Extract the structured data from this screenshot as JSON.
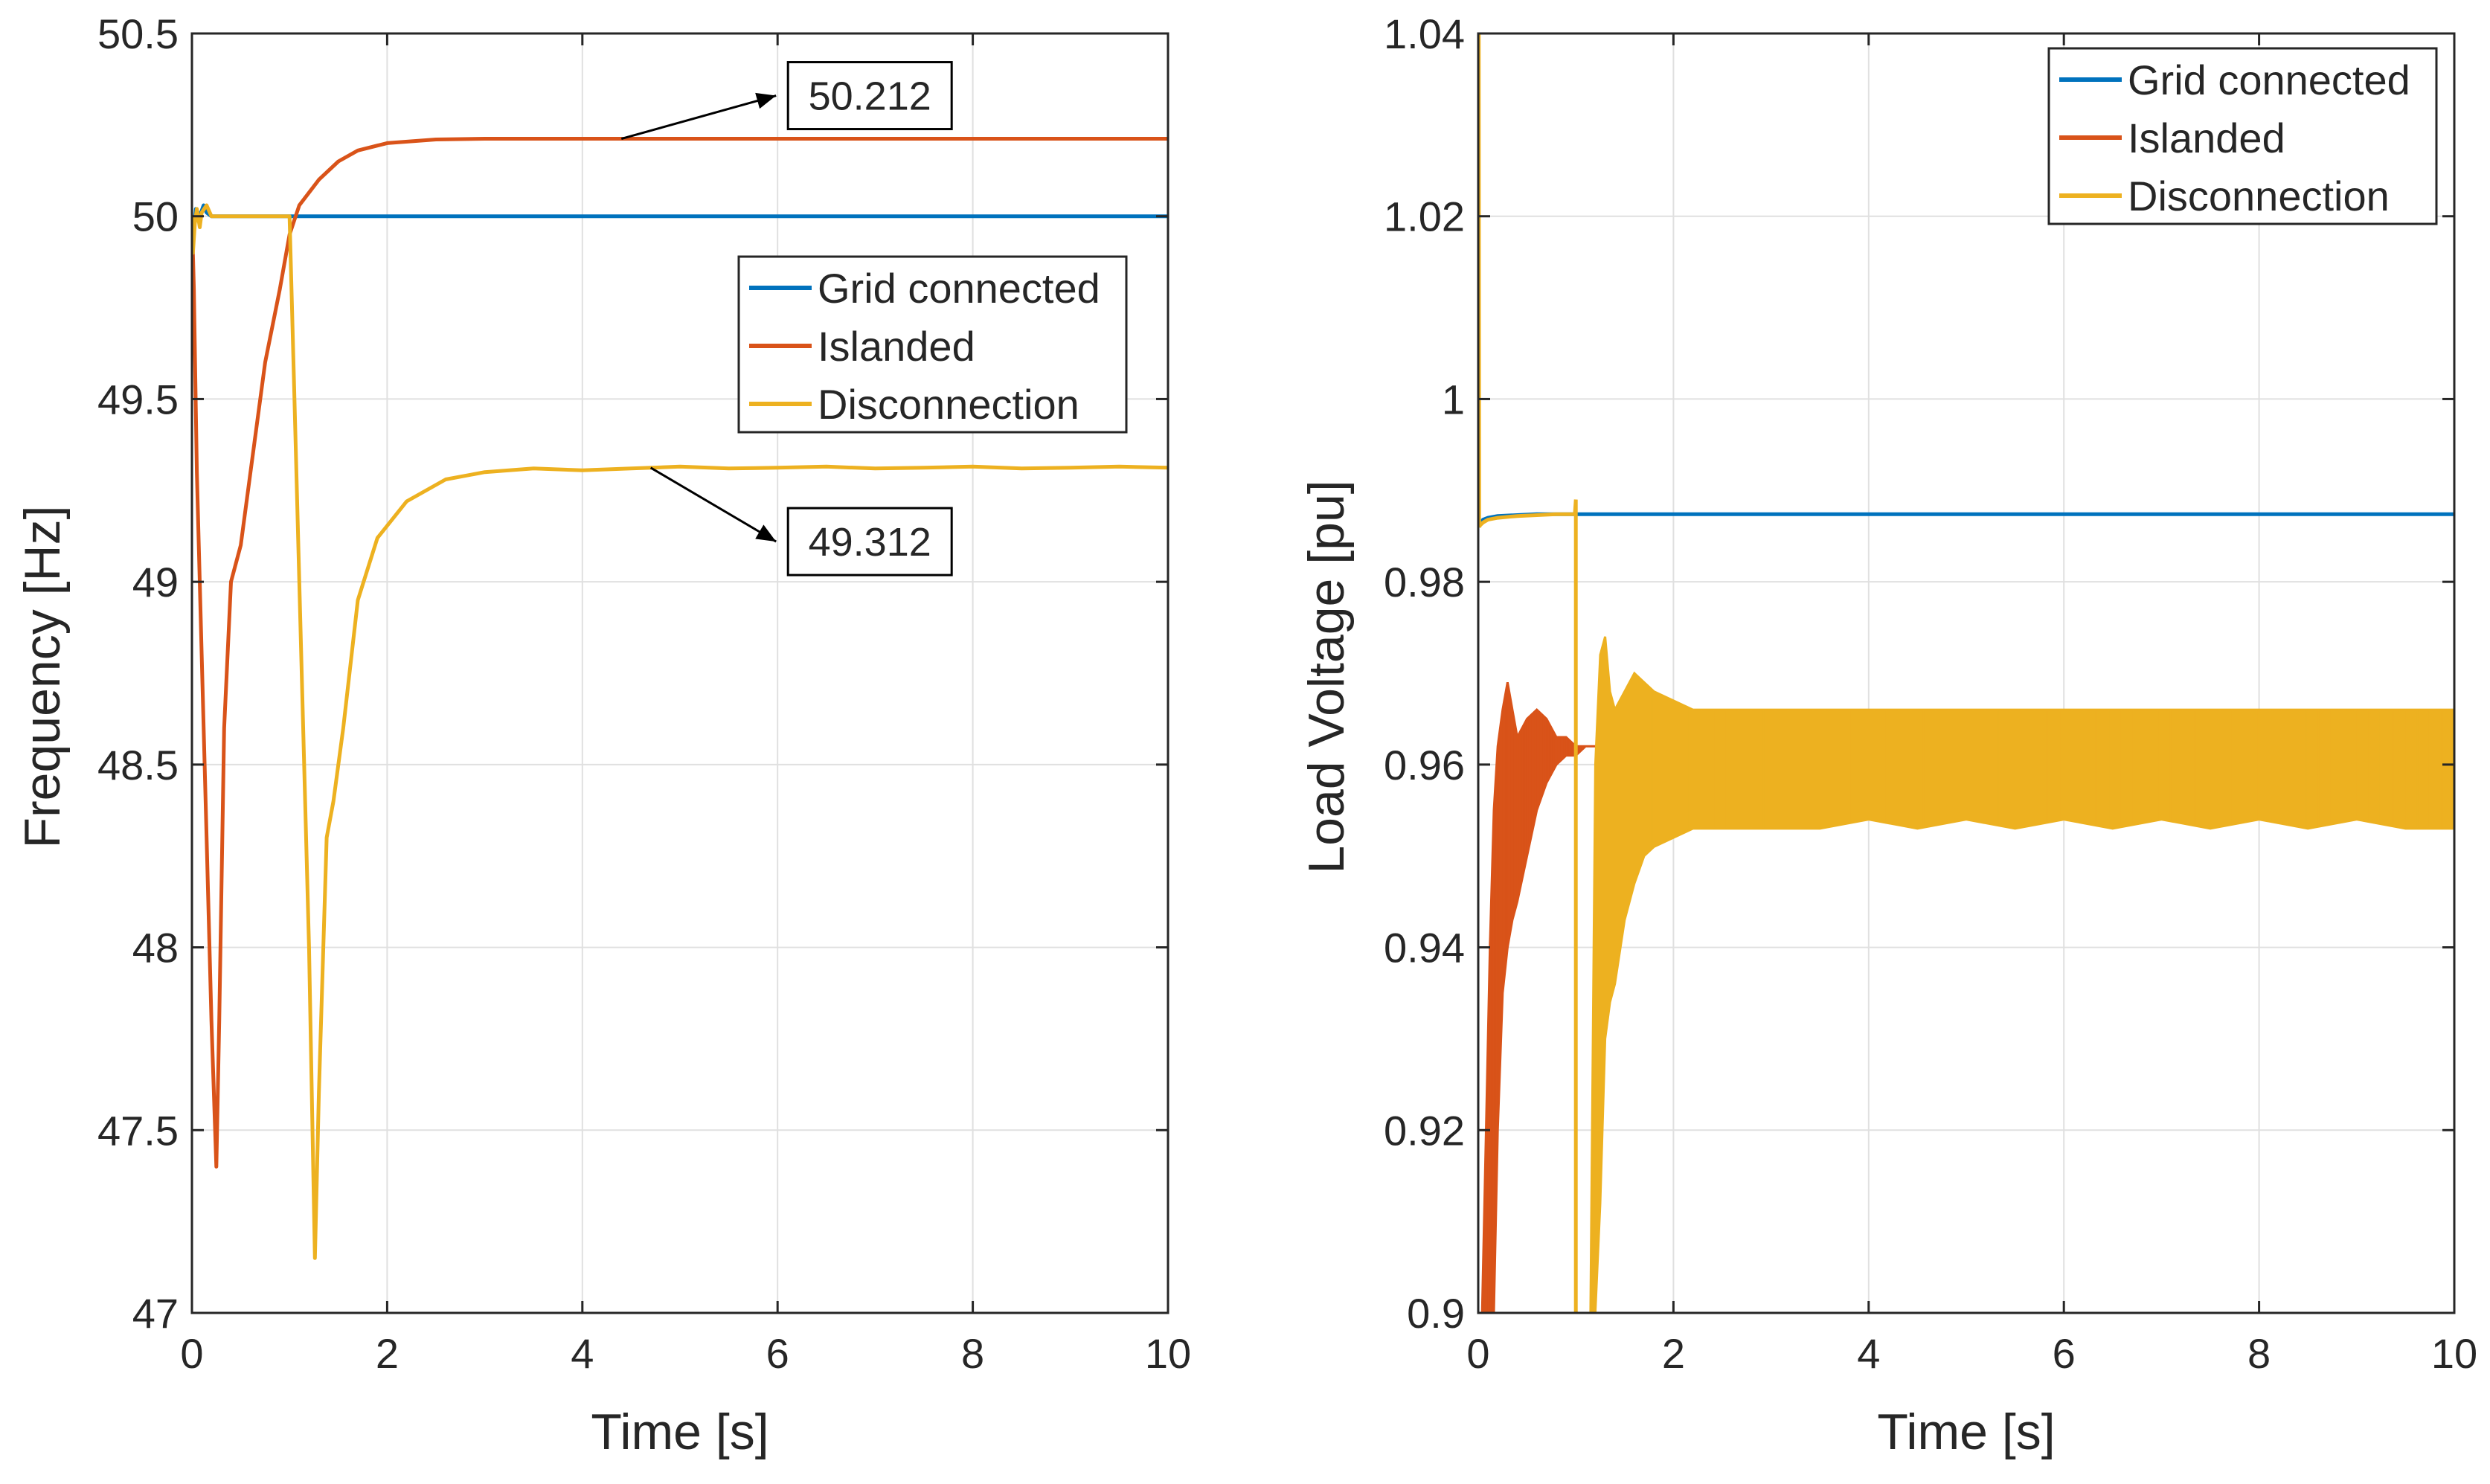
{
  "colors": {
    "grid_connected": "#0072BD",
    "islanded": "#D95319",
    "disconnection": "#EDB120",
    "axis": "#262626",
    "grid": "#e0e0e0"
  },
  "chart_data": [
    {
      "type": "line",
      "xlabel": "Time [s]",
      "ylabel": "Frequency [Hz]",
      "xlim": [
        0,
        10
      ],
      "ylim": [
        47,
        50.5
      ],
      "xticks": [
        0,
        2,
        4,
        6,
        8,
        10
      ],
      "yticks": [
        47,
        47.5,
        48,
        48.5,
        49,
        49.5,
        50,
        50.5
      ],
      "xtick_labels": [
        "0",
        "2",
        "4",
        "6",
        "8",
        "10"
      ],
      "ytick_labels": [
        "47",
        "47.5",
        "48",
        "48.5",
        "49",
        "49.5",
        "50",
        "50.5"
      ],
      "grid": true,
      "legend_position": "center-right",
      "series": [
        {
          "name": "Grid connected",
          "color_key": "grid_connected",
          "x": [
            0,
            0.01,
            0.02,
            0.04,
            0.08,
            0.12,
            0.15,
            0.2,
            0.5,
            0.8,
            1.0,
            10
          ],
          "y": [
            50,
            49.93,
            49.96,
            50.02,
            50.0,
            50.03,
            50.01,
            50.0,
            50.0,
            50.0,
            50.0,
            50.0
          ]
        },
        {
          "name": "Islanded",
          "color_key": "islanded",
          "x": [
            0,
            0.02,
            0.05,
            0.1,
            0.15,
            0.2,
            0.25,
            0.28,
            0.33,
            0.4,
            0.5,
            0.6,
            0.75,
            0.9,
            1.0,
            1.1,
            1.3,
            1.5,
            1.7,
            2.0,
            2.5,
            3.0,
            4.0,
            6.0,
            10.0
          ],
          "y": [
            50,
            49.8,
            49.3,
            48.8,
            48.3,
            47.8,
            47.4,
            47.8,
            48.6,
            49.0,
            49.1,
            49.3,
            49.6,
            49.8,
            49.95,
            50.03,
            50.1,
            50.15,
            50.18,
            50.2,
            50.21,
            50.212,
            50.212,
            50.212,
            50.212
          ]
        },
        {
          "name": "Disconnection",
          "color_key": "disconnection",
          "x": [
            0,
            0.01,
            0.03,
            0.05,
            0.08,
            0.1,
            0.15,
            0.2,
            0.5,
            0.99,
            1.0,
            1.05,
            1.12,
            1.2,
            1.26,
            1.3,
            1.38,
            1.45,
            1.55,
            1.7,
            1.9,
            2.2,
            2.6,
            3.0,
            3.5,
            4.0,
            4.5,
            5.0,
            5.5,
            6.0,
            6.5,
            7.0,
            7.5,
            8.0,
            8.5,
            9.0,
            9.5,
            10.0
          ],
          "y": [
            50,
            49.9,
            49.98,
            50.02,
            49.97,
            50.01,
            50.03,
            50.0,
            50.0,
            50.0,
            50.0,
            49.5,
            48.8,
            48.0,
            47.15,
            47.6,
            48.3,
            48.4,
            48.6,
            48.95,
            49.12,
            49.22,
            49.28,
            49.3,
            49.31,
            49.305,
            49.31,
            49.315,
            49.31,
            49.312,
            49.315,
            49.31,
            49.312,
            49.315,
            49.31,
            49.312,
            49.315,
            49.312
          ]
        }
      ],
      "annotations": [
        {
          "text": "50.212",
          "target": [
            4.4,
            50.212
          ],
          "label_at": [
            6.0,
            50.33
          ]
        },
        {
          "text": "49.312",
          "target": [
            4.7,
            49.312
          ],
          "label_at": [
            6.0,
            49.11
          ]
        }
      ]
    },
    {
      "type": "line",
      "xlabel": "Time [s]",
      "ylabel": "Load Voltage [pu]",
      "xlim": [
        0,
        10
      ],
      "ylim": [
        0.9,
        1.04
      ],
      "xticks": [
        0,
        2,
        4,
        6,
        8,
        10
      ],
      "yticks": [
        0.9,
        0.92,
        0.94,
        0.96,
        0.98,
        1.0,
        1.02,
        1.04
      ],
      "xtick_labels": [
        "0",
        "2",
        "4",
        "6",
        "8",
        "10"
      ],
      "ytick_labels": [
        "0.9",
        "0.92",
        "0.94",
        "0.96",
        "0.98",
        "1",
        "1.02",
        "1.04"
      ],
      "grid": true,
      "legend_position": "top-right",
      "series": [
        {
          "name": "Grid connected",
          "color_key": "grid_connected",
          "x": [
            0,
            0.02,
            0.05,
            0.1,
            0.2,
            0.4,
            0.6,
            1.0,
            10
          ],
          "y": [
            0.986,
            0.9865,
            0.9868,
            0.987,
            0.9872,
            0.9873,
            0.9874,
            0.9874,
            0.9874
          ]
        },
        {
          "name": "Islanded",
          "color_key": "islanded",
          "band": true,
          "x": [
            0.04,
            0.08,
            0.12,
            0.16,
            0.2,
            0.25,
            0.3,
            0.35,
            0.4,
            0.5,
            0.6,
            0.7,
            0.8,
            0.9,
            1.0,
            1.1,
            1.2
          ],
          "upper": [
            0.9,
            0.92,
            0.94,
            0.955,
            0.962,
            0.966,
            0.969,
            0.966,
            0.963,
            0.965,
            0.966,
            0.965,
            0.963,
            0.963,
            0.962,
            0.962,
            0.962
          ],
          "lower": [
            0.9,
            0.9,
            0.9,
            0.9,
            0.92,
            0.935,
            0.94,
            0.943,
            0.945,
            0.95,
            0.955,
            0.958,
            0.96,
            0.961,
            0.961,
            0.962,
            0.962
          ]
        },
        {
          "name": "Disconnection",
          "color_key": "disconnection",
          "band": true,
          "line_x": [
            0,
            0.005,
            0.01,
            0.02,
            0.05,
            0.1,
            0.2,
            0.4,
            0.6,
            0.8,
            0.99,
            1.0,
            1.0,
            1.01,
            1.02
          ],
          "line_y": [
            1.04,
            1.04,
            0.986,
            0.9862,
            0.9865,
            0.9868,
            0.987,
            0.9872,
            0.9873,
            0.9874,
            0.9874,
            0.989,
            0.9,
            0.9,
            0.9
          ],
          "x": [
            1.15,
            1.2,
            1.25,
            1.3,
            1.35,
            1.4,
            1.5,
            1.6,
            1.7,
            1.8,
            2.0,
            2.2,
            2.5,
            3.0,
            3.5,
            4.0,
            4.5,
            5.0,
            5.5,
            6.0,
            6.5,
            7.0,
            7.5,
            8.0,
            8.5,
            9.0,
            9.5,
            10.0
          ],
          "upper": [
            0.9,
            0.96,
            0.972,
            0.974,
            0.968,
            0.966,
            0.968,
            0.97,
            0.969,
            0.968,
            0.967,
            0.966,
            0.966,
            0.966,
            0.966,
            0.966,
            0.966,
            0.966,
            0.966,
            0.966,
            0.966,
            0.966,
            0.966,
            0.966,
            0.966,
            0.966,
            0.966,
            0.966
          ],
          "lower": [
            0.9,
            0.9,
            0.912,
            0.93,
            0.934,
            0.936,
            0.943,
            0.947,
            0.95,
            0.951,
            0.952,
            0.953,
            0.953,
            0.953,
            0.953,
            0.954,
            0.953,
            0.954,
            0.953,
            0.954,
            0.953,
            0.954,
            0.953,
            0.954,
            0.953,
            0.954,
            0.953,
            0.953
          ]
        }
      ],
      "annotations": []
    }
  ]
}
